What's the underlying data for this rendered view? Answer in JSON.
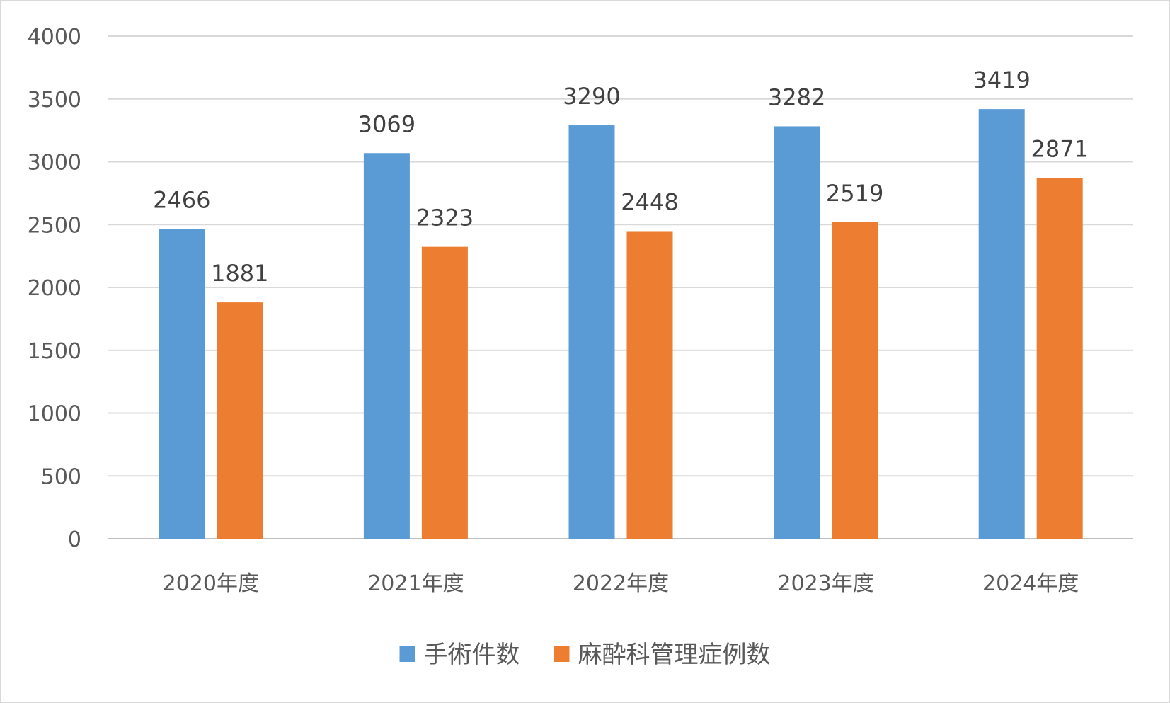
{
  "chart_data": {
    "type": "bar",
    "categories": [
      "2020年度",
      "2021年度",
      "2022年度",
      "2023年度",
      "2024年度"
    ],
    "series": [
      {
        "name": "手術件数",
        "values": [
          2466,
          3069,
          3290,
          3282,
          3419
        ],
        "color": "#5b9bd5"
      },
      {
        "name": "麻酔科管理症例数",
        "values": [
          1881,
          2323,
          2448,
          2519,
          2871
        ],
        "color": "#ed7d31"
      }
    ],
    "title": "",
    "xlabel": "",
    "ylabel": "",
    "ylim": [
      0,
      4000
    ],
    "yticks": [
      0,
      500,
      1000,
      1500,
      2000,
      2500,
      3000,
      3500,
      4000
    ],
    "grid": true,
    "legend_position": "bottom",
    "gridline_color": "#d9d9d9",
    "axis_color": "#bfbfbf"
  }
}
